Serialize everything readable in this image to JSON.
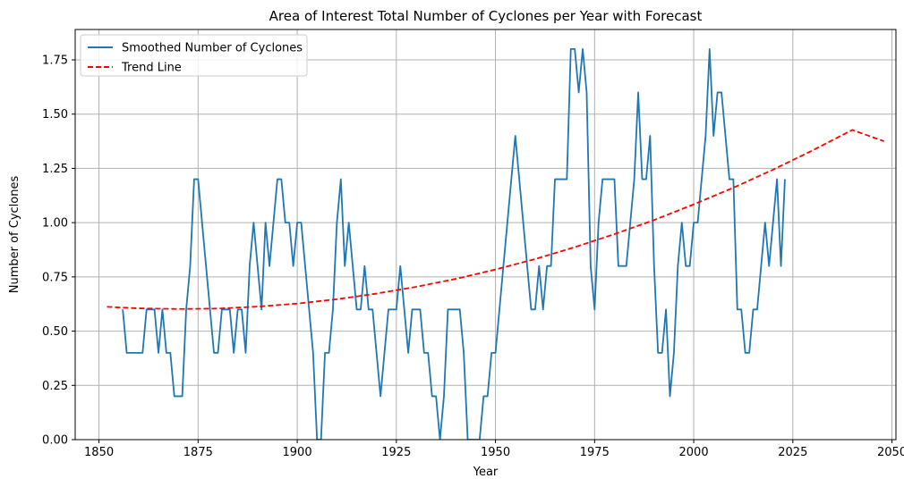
{
  "chart_data": {
    "type": "line",
    "title": "Area of Interest Total Number of Cyclones per Year with Forecast",
    "xlabel": "Year",
    "ylabel": "Number of Cyclones",
    "xlim": [
      1844,
      2051
    ],
    "ylim": [
      0,
      1.89
    ],
    "xticks": [
      1850,
      1875,
      1900,
      1925,
      1950,
      1975,
      2000,
      2025,
      2050
    ],
    "yticks": [
      0.0,
      0.25,
      0.5,
      0.75,
      1.0,
      1.25,
      1.5,
      1.75
    ],
    "xtick_labels": [
      "1850",
      "1875",
      "1900",
      "1925",
      "1950",
      "1975",
      "2000",
      "2025",
      "2050"
    ],
    "ytick_labels": [
      "0.00",
      "0.25",
      "0.50",
      "0.75",
      "1.00",
      "1.25",
      "1.50",
      "1.75"
    ],
    "grid": true,
    "legend_position": "top-left",
    "series": [
      {
        "name": "Smoothed Number of Cyclones",
        "color": "#1f77b4",
        "style": "solid",
        "points": [
          [
            1856,
            0.6
          ],
          [
            1857,
            0.4
          ],
          [
            1858,
            0.4
          ],
          [
            1859,
            0.4
          ],
          [
            1860,
            0.4
          ],
          [
            1861,
            0.4
          ],
          [
            1862,
            0.6
          ],
          [
            1863,
            0.6
          ],
          [
            1864,
            0.6
          ],
          [
            1865,
            0.4
          ],
          [
            1866,
            0.6
          ],
          [
            1867,
            0.4
          ],
          [
            1868,
            0.4
          ],
          [
            1869,
            0.2
          ],
          [
            1870,
            0.2
          ],
          [
            1871,
            0.2
          ],
          [
            1872,
            0.6
          ],
          [
            1873,
            0.8
          ],
          [
            1874,
            1.2
          ],
          [
            1875,
            1.2
          ],
          [
            1876,
            1.0
          ],
          [
            1877,
            0.8
          ],
          [
            1878,
            0.6
          ],
          [
            1879,
            0.4
          ],
          [
            1880,
            0.4
          ],
          [
            1881,
            0.6
          ],
          [
            1882,
            0.6
          ],
          [
            1883,
            0.6
          ],
          [
            1884,
            0.4
          ],
          [
            1885,
            0.6
          ],
          [
            1886,
            0.6
          ],
          [
            1887,
            0.4
          ],
          [
            1888,
            0.8
          ],
          [
            1889,
            1.0
          ],
          [
            1890,
            0.8
          ],
          [
            1891,
            0.6
          ],
          [
            1892,
            1.0
          ],
          [
            1893,
            0.8
          ],
          [
            1894,
            1.0
          ],
          [
            1895,
            1.2
          ],
          [
            1896,
            1.2
          ],
          [
            1897,
            1.0
          ],
          [
            1898,
            1.0
          ],
          [
            1899,
            0.8
          ],
          [
            1900,
            1.0
          ],
          [
            1901,
            1.0
          ],
          [
            1902,
            0.8
          ],
          [
            1903,
            0.6
          ],
          [
            1904,
            0.4
          ],
          [
            1905,
            0.0
          ],
          [
            1906,
            0.0
          ],
          [
            1907,
            0.4
          ],
          [
            1908,
            0.4
          ],
          [
            1909,
            0.6
          ],
          [
            1910,
            1.0
          ],
          [
            1911,
            1.2
          ],
          [
            1912,
            0.8
          ],
          [
            1913,
            1.0
          ],
          [
            1914,
            0.8
          ],
          [
            1915,
            0.6
          ],
          [
            1916,
            0.6
          ],
          [
            1917,
            0.8
          ],
          [
            1918,
            0.6
          ],
          [
            1919,
            0.6
          ],
          [
            1920,
            0.4
          ],
          [
            1921,
            0.2
          ],
          [
            1922,
            0.4
          ],
          [
            1923,
            0.6
          ],
          [
            1924,
            0.6
          ],
          [
            1925,
            0.6
          ],
          [
            1926,
            0.8
          ],
          [
            1927,
            0.6
          ],
          [
            1928,
            0.4
          ],
          [
            1929,
            0.6
          ],
          [
            1930,
            0.6
          ],
          [
            1931,
            0.6
          ],
          [
            1932,
            0.4
          ],
          [
            1933,
            0.4
          ],
          [
            1934,
            0.2
          ],
          [
            1935,
            0.2
          ],
          [
            1936,
            0.0
          ],
          [
            1937,
            0.2
          ],
          [
            1938,
            0.6
          ],
          [
            1939,
            0.6
          ],
          [
            1940,
            0.6
          ],
          [
            1941,
            0.6
          ],
          [
            1942,
            0.4
          ],
          [
            1943,
            0.0
          ],
          [
            1944,
            0.0
          ],
          [
            1945,
            0.0
          ],
          [
            1946,
            0.0
          ],
          [
            1947,
            0.2
          ],
          [
            1948,
            0.2
          ],
          [
            1949,
            0.4
          ],
          [
            1950,
            0.4
          ],
          [
            1951,
            0.6
          ],
          [
            1952,
            0.8
          ],
          [
            1953,
            1.0
          ],
          [
            1954,
            1.2
          ],
          [
            1955,
            1.4
          ],
          [
            1956,
            1.2
          ],
          [
            1957,
            1.0
          ],
          [
            1958,
            0.8
          ],
          [
            1959,
            0.6
          ],
          [
            1960,
            0.6
          ],
          [
            1961,
            0.8
          ],
          [
            1962,
            0.6
          ],
          [
            1963,
            0.8
          ],
          [
            1964,
            0.8
          ],
          [
            1965,
            1.2
          ],
          [
            1966,
            1.2
          ],
          [
            1967,
            1.2
          ],
          [
            1968,
            1.2
          ],
          [
            1969,
            1.8
          ],
          [
            1970,
            1.8
          ],
          [
            1971,
            1.6
          ],
          [
            1972,
            1.8
          ],
          [
            1973,
            1.6
          ],
          [
            1974,
            0.8
          ],
          [
            1975,
            0.6
          ],
          [
            1976,
            1.0
          ],
          [
            1977,
            1.2
          ],
          [
            1978,
            1.2
          ],
          [
            1979,
            1.2
          ],
          [
            1980,
            1.2
          ],
          [
            1981,
            0.8
          ],
          [
            1982,
            0.8
          ],
          [
            1983,
            0.8
          ],
          [
            1984,
            1.0
          ],
          [
            1985,
            1.2
          ],
          [
            1986,
            1.6
          ],
          [
            1987,
            1.2
          ],
          [
            1988,
            1.2
          ],
          [
            1989,
            1.4
          ],
          [
            1990,
            0.8
          ],
          [
            1991,
            0.4
          ],
          [
            1992,
            0.4
          ],
          [
            1993,
            0.6
          ],
          [
            1994,
            0.2
          ],
          [
            1995,
            0.4
          ],
          [
            1996,
            0.8
          ],
          [
            1997,
            1.0
          ],
          [
            1998,
            0.8
          ],
          [
            1999,
            0.8
          ],
          [
            2000,
            1.0
          ],
          [
            2001,
            1.0
          ],
          [
            2002,
            1.2
          ],
          [
            2003,
            1.4
          ],
          [
            2004,
            1.8
          ],
          [
            2005,
            1.4
          ],
          [
            2006,
            1.6
          ],
          [
            2007,
            1.6
          ],
          [
            2008,
            1.4
          ],
          [
            2009,
            1.2
          ],
          [
            2010,
            1.2
          ],
          [
            2011,
            0.6
          ],
          [
            2012,
            0.6
          ],
          [
            2013,
            0.4
          ],
          [
            2014,
            0.4
          ],
          [
            2015,
            0.6
          ],
          [
            2016,
            0.6
          ],
          [
            2017,
            0.8
          ],
          [
            2018,
            1.0
          ],
          [
            2019,
            0.8
          ],
          [
            2020,
            1.0
          ],
          [
            2021,
            1.2
          ],
          [
            2022,
            0.8
          ],
          [
            2023,
            1.2
          ]
        ]
      },
      {
        "name": "Trend Line",
        "color": "#ff0000",
        "style": "dashed",
        "points": [
          [
            1852,
            0.612
          ],
          [
            1860,
            0.605
          ],
          [
            1870,
            0.602
          ],
          [
            1880,
            0.604
          ],
          [
            1890,
            0.613
          ],
          [
            1900,
            0.627
          ],
          [
            1910,
            0.647
          ],
          [
            1920,
            0.673
          ],
          [
            1930,
            0.704
          ],
          [
            1940,
            0.741
          ],
          [
            1950,
            0.784
          ],
          [
            1960,
            0.832
          ],
          [
            1970,
            0.887
          ],
          [
            1980,
            0.947
          ],
          [
            1990,
            1.012
          ],
          [
            2000,
            1.084
          ],
          [
            2010,
            1.161
          ],
          [
            2020,
            1.244
          ],
          [
            2030,
            1.333
          ],
          [
            2040,
            1.427
          ],
          [
            2048,
            1.375
          ]
        ]
      }
    ]
  }
}
